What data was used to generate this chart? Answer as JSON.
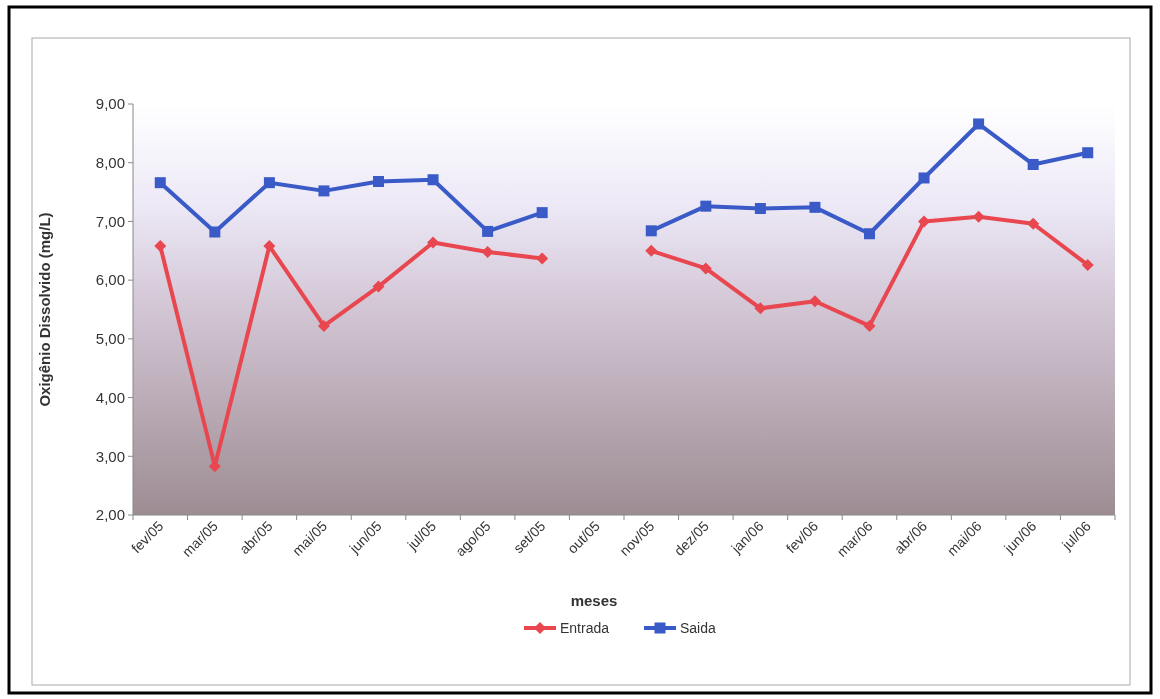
{
  "chart_data": {
    "type": "line",
    "xlabel": "meses",
    "ylabel": "Oxigênio Dissolvido (mg/L)",
    "categories": [
      "fev/05",
      "mar/05",
      "abr/05",
      "mai/05",
      "jun/05",
      "jul/05",
      "ago/05",
      "set/05",
      "out/05",
      "nov/05",
      "dez/05",
      "jan/06",
      "fev/06",
      "mar/06",
      "abr/06",
      "mai/06",
      "jun/06",
      "jul/06"
    ],
    "series": [
      {
        "name": "Entrada",
        "color": "#e8474f",
        "marker": "diamond",
        "values": [
          6.58,
          2.83,
          6.58,
          5.22,
          5.89,
          6.64,
          6.48,
          6.37,
          null,
          6.5,
          6.2,
          5.52,
          5.64,
          5.22,
          7.0,
          7.08,
          6.96,
          6.26
        ]
      },
      {
        "name": "Saida",
        "color": "#3a5bc7",
        "marker": "square",
        "values": [
          7.66,
          6.82,
          7.66,
          7.52,
          7.68,
          7.71,
          6.83,
          7.15,
          null,
          6.84,
          7.26,
          7.22,
          7.24,
          6.79,
          7.74,
          8.66,
          7.97,
          8.17
        ]
      }
    ],
    "ylim": [
      2,
      9
    ],
    "yticks": [
      {
        "value": 2,
        "label": "2,00"
      },
      {
        "value": 3,
        "label": "3,00"
      },
      {
        "value": 4,
        "label": "4,00"
      },
      {
        "value": 5,
        "label": "5,00"
      },
      {
        "value": 6,
        "label": "6,00"
      },
      {
        "value": 7,
        "label": "7,00"
      },
      {
        "value": 8,
        "label": "8,00"
      },
      {
        "value": 9,
        "label": "9,00"
      }
    ],
    "grid": false,
    "legend": "bottom",
    "line_style": "solid"
  }
}
